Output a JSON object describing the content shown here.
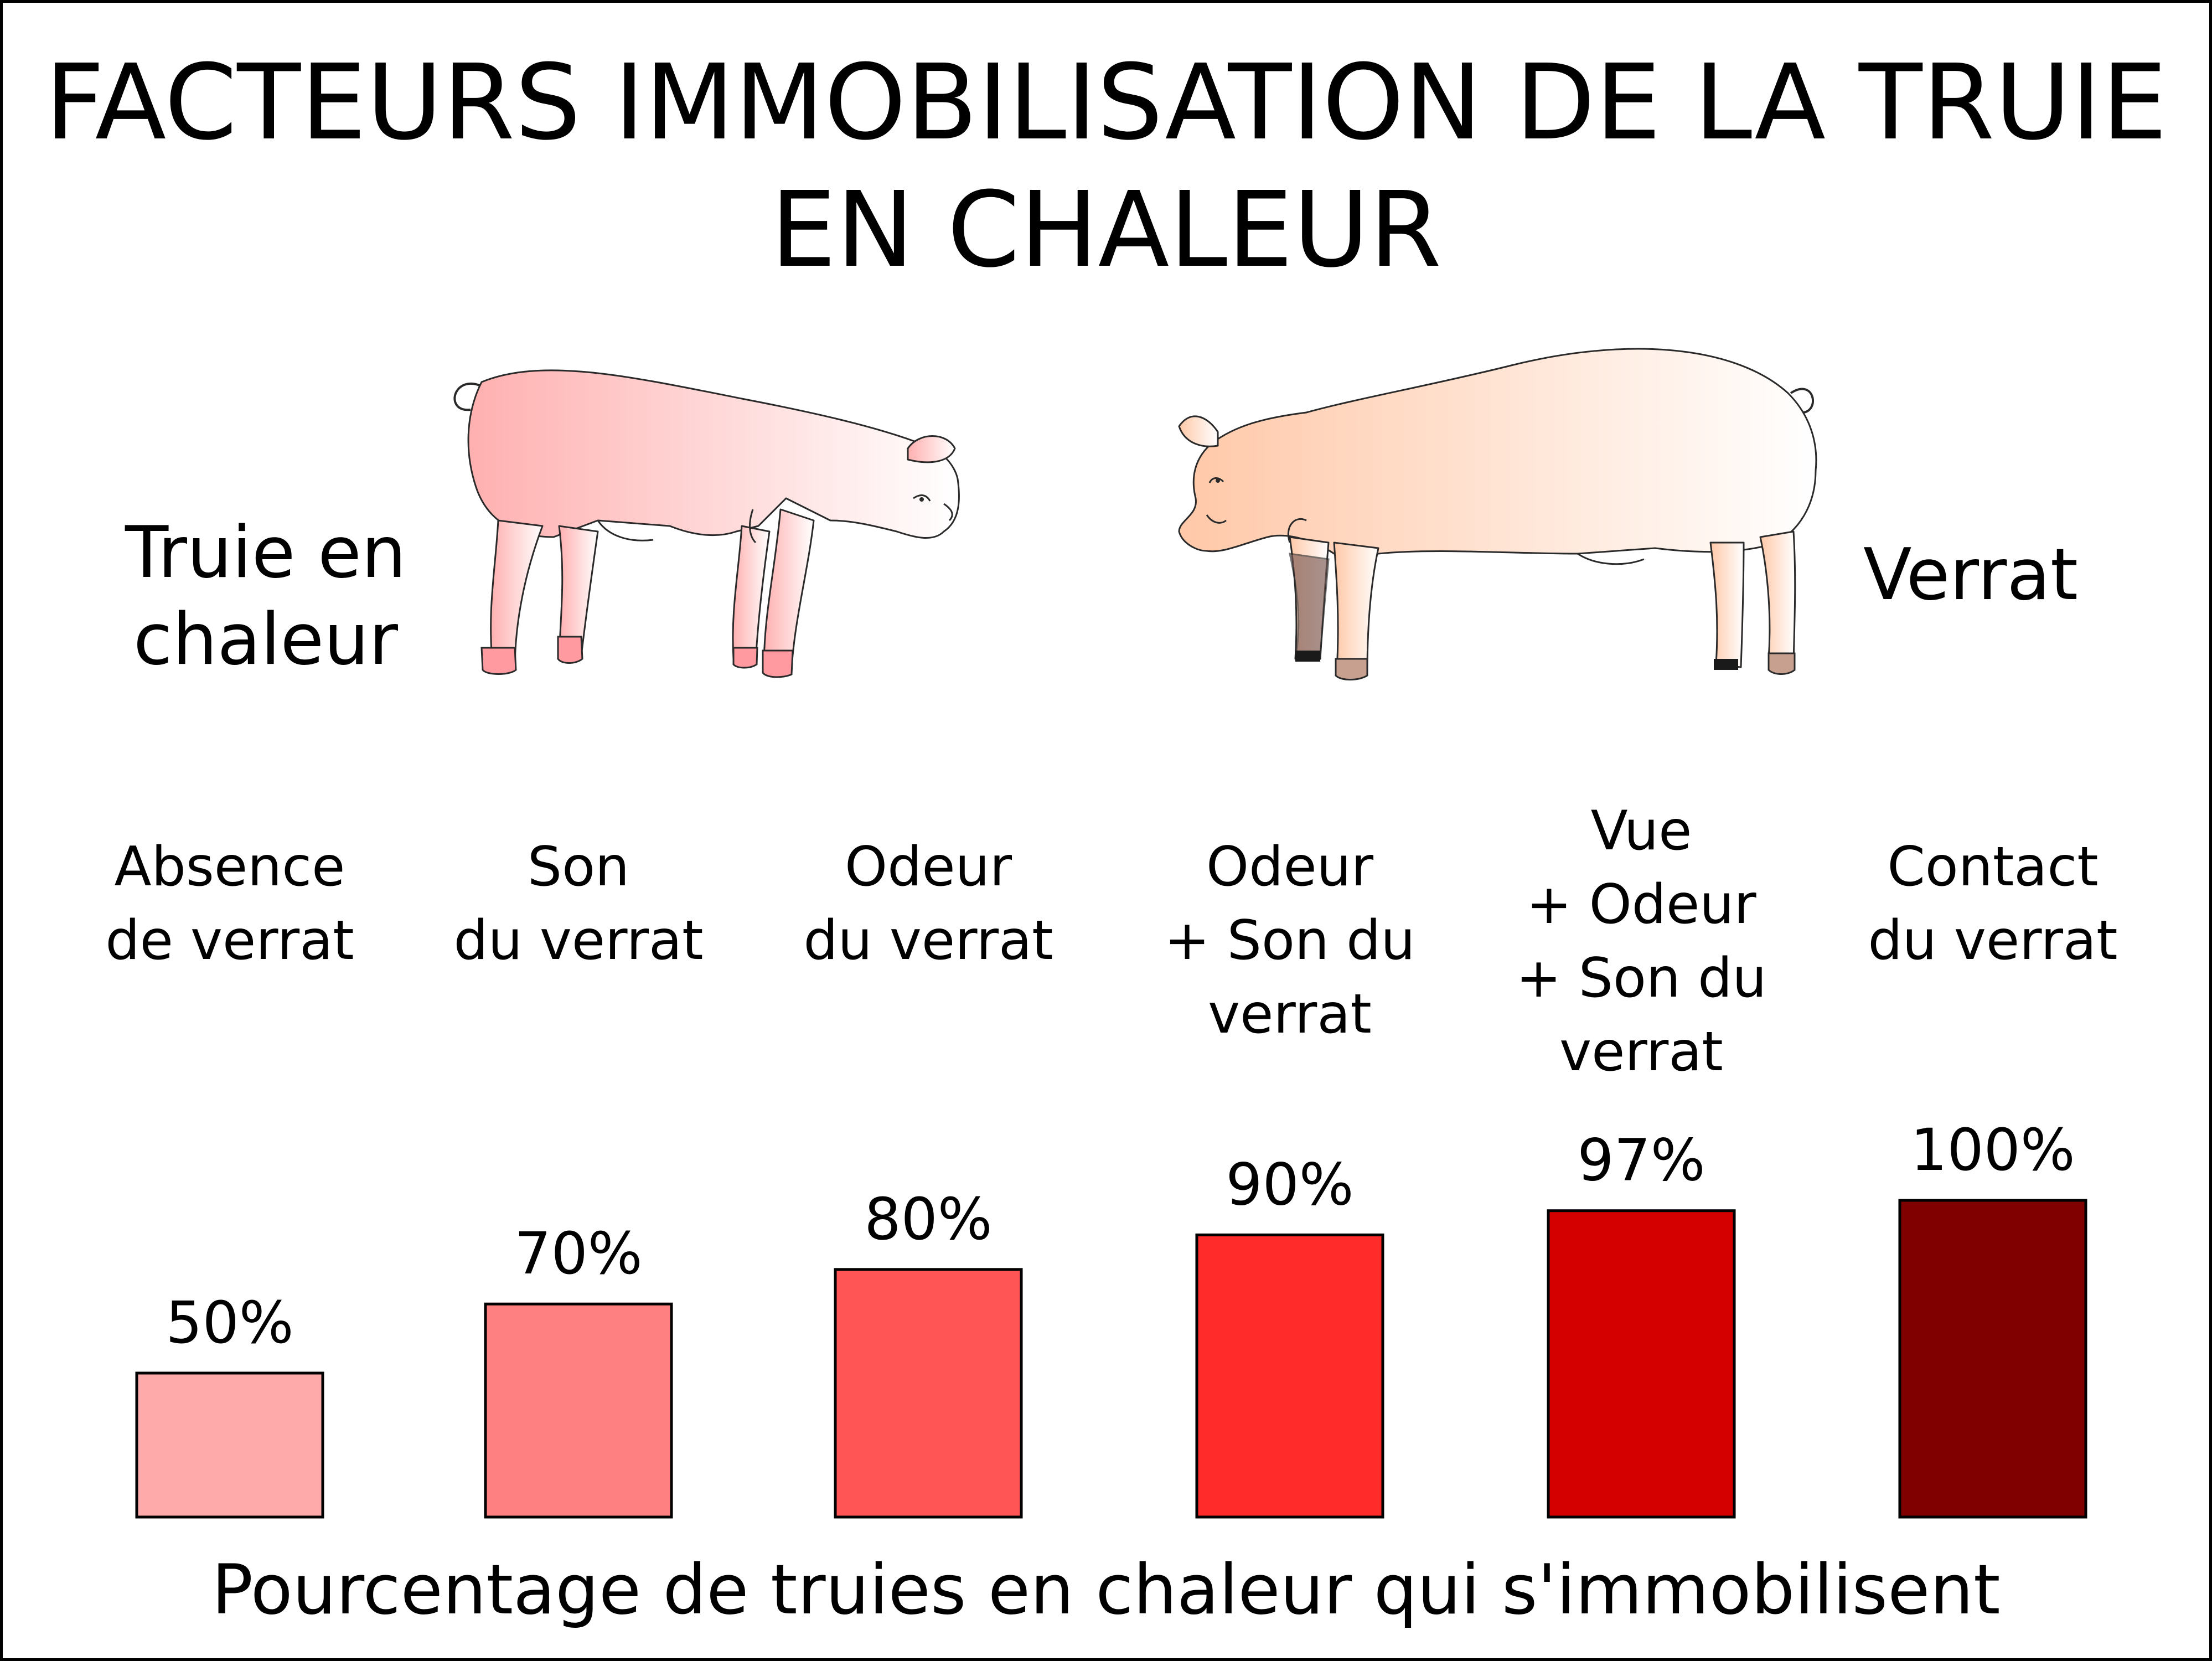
{
  "header": {
    "title_line1": "FACTEURS IMMOBILISATION DE LA TRUIE",
    "title_line2": "EN CHALEUR"
  },
  "labels": {
    "truie": "Truie en\nchaleur",
    "verrat": "Verrat"
  },
  "illustrations": {
    "left": "sow-icon",
    "right": "boar-icon"
  },
  "chart_data": {
    "type": "bar",
    "categories": [
      "Absence\nde verrat",
      "Son\ndu verrat",
      "Odeur\ndu verrat",
      "Odeur\n+ Son du\nverrat",
      "Vue\n+ Odeur\n+ Son du\nverrat",
      "Contact\ndu verrat"
    ],
    "values": [
      50,
      70,
      80,
      90,
      97,
      100
    ],
    "value_labels": [
      "50%",
      "70%",
      "80%",
      "90%",
      "97%",
      "100%"
    ],
    "colors": [
      "#ffaaaa",
      "#ff8080",
      "#ff5555",
      "#ff2a2a",
      "#d40000",
      "#800000"
    ],
    "xlabel": "Pourcentage de truies en chaleur qui s'immobilisent",
    "ylabel": "",
    "ylim": [
      0,
      100
    ],
    "grid": false
  }
}
